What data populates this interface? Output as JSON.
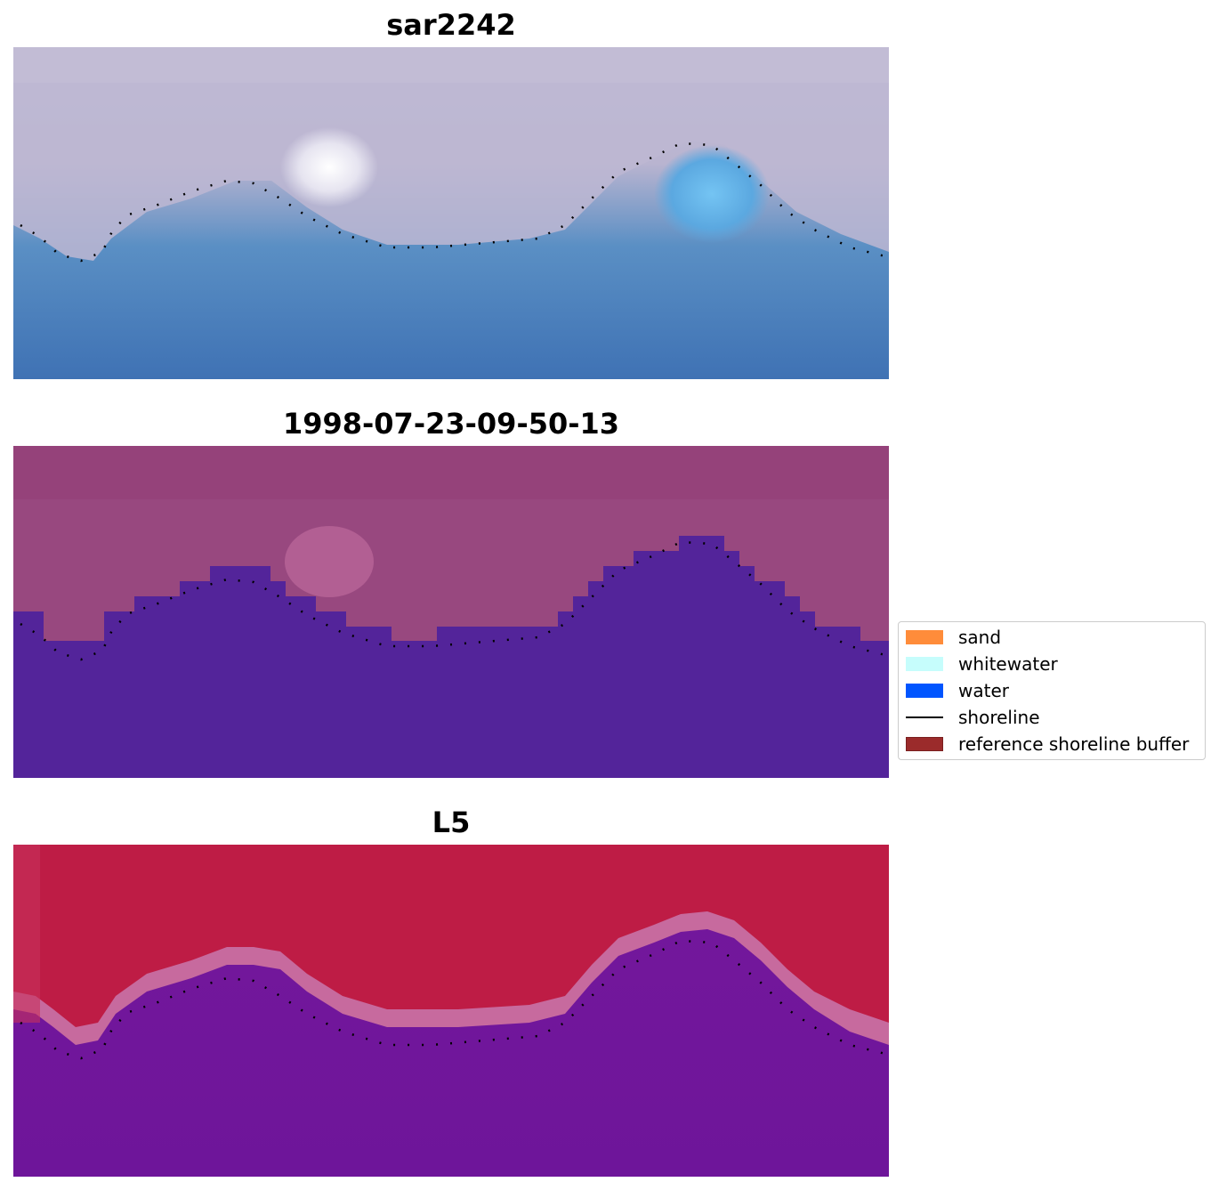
{
  "panels": [
    {
      "title": "sar2242",
      "description_key": "rgb"
    },
    {
      "title": "1998-07-23-09-50-13",
      "description_key": "classified"
    },
    {
      "title": "L5",
      "description_key": "mndwi"
    }
  ],
  "legend": {
    "items": [
      {
        "label": "sand",
        "color": "#ff8c3a",
        "kind": "patch"
      },
      {
        "label": "whitewater",
        "color": "#c6fdfc",
        "kind": "patch"
      },
      {
        "label": "water",
        "color": "#0055ff",
        "kind": "patch"
      },
      {
        "label": "shoreline",
        "color": "#000000",
        "kind": "line"
      },
      {
        "label": "reference shoreline buffer",
        "color": "#9b2b2b",
        "kind": "patch"
      }
    ]
  },
  "colors": {
    "rgb_sky_land": "#c3bdd6",
    "rgb_water": "#3f76b8",
    "rgb_bright_patch": "#ffffff",
    "rgb_cyan_patch": "#72c0f0",
    "class_land": "#9a4b86",
    "class_water": "#53259b",
    "mndwi_land": "#c11a42",
    "mndwi_edge": "#c76a9e",
    "mndwi_water": "#73169c",
    "shoreline_dots": "#000000"
  }
}
